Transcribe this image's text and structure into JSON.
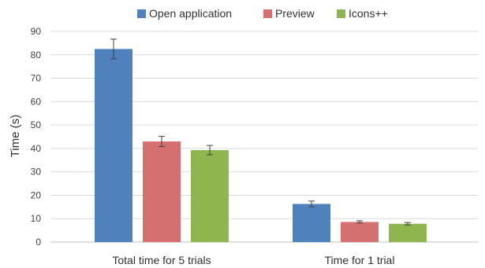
{
  "chart_data": {
    "type": "bar",
    "categories": [
      "Total time for 5 trials",
      "Time for 1 trial"
    ],
    "series": [
      {
        "name": "Open application",
        "color": "#4f81bd",
        "values": [
          82.5,
          16.3
        ],
        "errors": [
          4.2,
          1.2
        ]
      },
      {
        "name": "Preview",
        "color": "#d47070",
        "values": [
          43.0,
          8.6
        ],
        "errors": [
          2.2,
          0.5
        ]
      },
      {
        "name": "Icons++",
        "color": "#8fb64e",
        "values": [
          39.3,
          7.8
        ],
        "errors": [
          2.0,
          0.5
        ]
      }
    ],
    "title": "",
    "xlabel": "",
    "ylabel": "Time (s)",
    "ylim": [
      0,
      90
    ],
    "yticks": [
      "0",
      "10",
      "20",
      "30",
      "40",
      "50",
      "60",
      "70",
      "80",
      "90"
    ],
    "grid": true,
    "legend": "top-center"
  }
}
